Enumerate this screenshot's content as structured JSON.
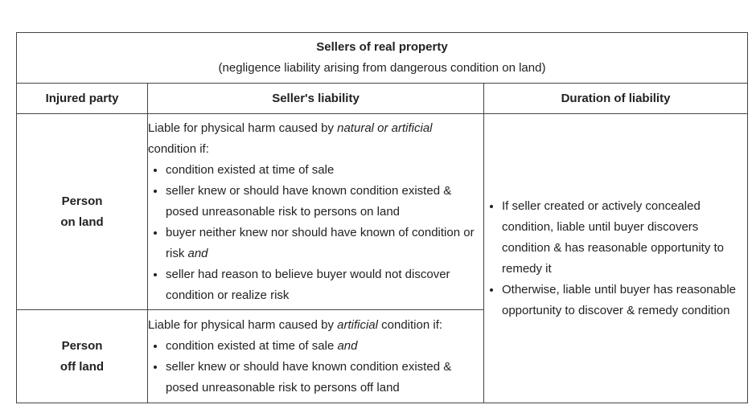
{
  "title": {
    "main": "Sellers of real property",
    "sub": "(negligence liability arising from dangerous condition on land)"
  },
  "headers": {
    "party": "Injured party",
    "liability": "Seller's liability",
    "duration": "Duration of liability"
  },
  "rows": [
    {
      "party_line1": "Person",
      "party_line2": "on land",
      "intro_before": "Liable for physical harm caused by ",
      "intro_em": "natural or artificial",
      "intro_after": " condition if:",
      "bullets": [
        {
          "text": "condition existed at time of sale",
          "em": ""
        },
        {
          "text": "seller knew or should have known condition existed & posed unreasonable risk to persons on land",
          "em": ""
        },
        {
          "text": "buyer neither knew nor should have known of condition or risk ",
          "em": "and"
        },
        {
          "text": "seller had reason to believe buyer would not discover condition or realize risk",
          "em": ""
        }
      ]
    },
    {
      "party_line1": "Person",
      "party_line2": "off land",
      "intro_before": "Liable for physical harm caused by ",
      "intro_em": "artificial",
      "intro_after": " condition if:",
      "bullets": [
        {
          "text": "condition existed at time of sale ",
          "em": "and"
        },
        {
          "text": "seller knew or should have known condition existed & posed unreasonable risk to persons off land",
          "em": ""
        }
      ]
    }
  ],
  "duration": [
    "If seller created or actively concealed condition, liable until buyer discovers condition & has reasonable opportunity to remedy it",
    "Otherwise, liable until buyer has reasonable opportunity to discover & remedy condition"
  ]
}
